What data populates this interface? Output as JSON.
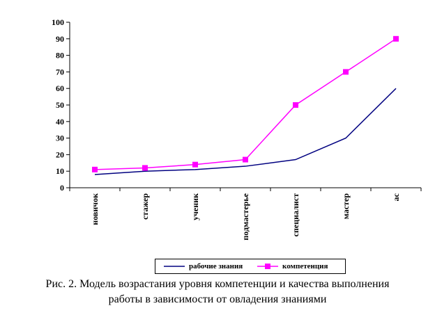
{
  "chart_data": {
    "type": "line",
    "categories": [
      "новичок",
      "стажер",
      "ученик",
      "подмастерье",
      "специалист",
      "мастер",
      "ас"
    ],
    "series": [
      {
        "name": "рабочие знания",
        "values": [
          8,
          10,
          11,
          13,
          17,
          30,
          60
        ],
        "color": "#000080",
        "marker": "none"
      },
      {
        "name": "компетенция",
        "values": [
          11,
          12,
          14,
          17,
          50,
          70,
          90
        ],
        "color": "#ff00ff",
        "marker": "square"
      }
    ],
    "ylim": [
      0,
      100
    ],
    "yticks": [
      0,
      10,
      20,
      30,
      40,
      50,
      60,
      70,
      80,
      90,
      100
    ],
    "grid": false,
    "legend": "bottom"
  },
  "caption": {
    "line1": "Рис. 2. Модель возрастания уровня компетенции и качества выполнения",
    "line2": "работы в зависимости от овладения знаниями"
  }
}
